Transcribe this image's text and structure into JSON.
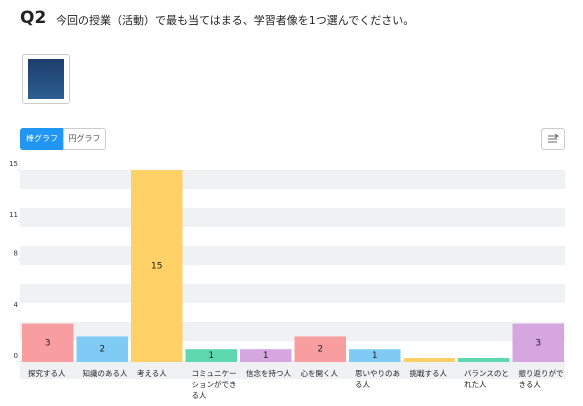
{
  "header": {
    "number": "Q2",
    "question": "今回の授業（活動）で最も当てはまる、学習者像を1つ選んでください。"
  },
  "tabs": [
    "棒グラフ",
    "円グラフ"
  ],
  "chart_data": {
    "type": "bar",
    "categories": [
      "探究する人",
      "知識のある人",
      "考える人",
      "コミュニケーションができる人",
      "信念を持つ人",
      "心を開く人",
      "思いやりのある人",
      "挑戦する人",
      "バランスのとれた人",
      "振り返りができる人"
    ],
    "values": [
      3,
      2,
      15,
      1,
      1,
      2,
      1,
      0,
      0,
      3
    ],
    "colors": [
      "#f99ea0",
      "#7fcbf5",
      "#ffd166",
      "#5fd8b0",
      "#d5a6e0",
      "#f99ea0",
      "#7fcbf5",
      "#ffd166",
      "#5fd8b0",
      "#d5a6e0"
    ],
    "ylim": [
      0,
      15
    ],
    "yticks": [
      0,
      4,
      8,
      11,
      15
    ]
  }
}
